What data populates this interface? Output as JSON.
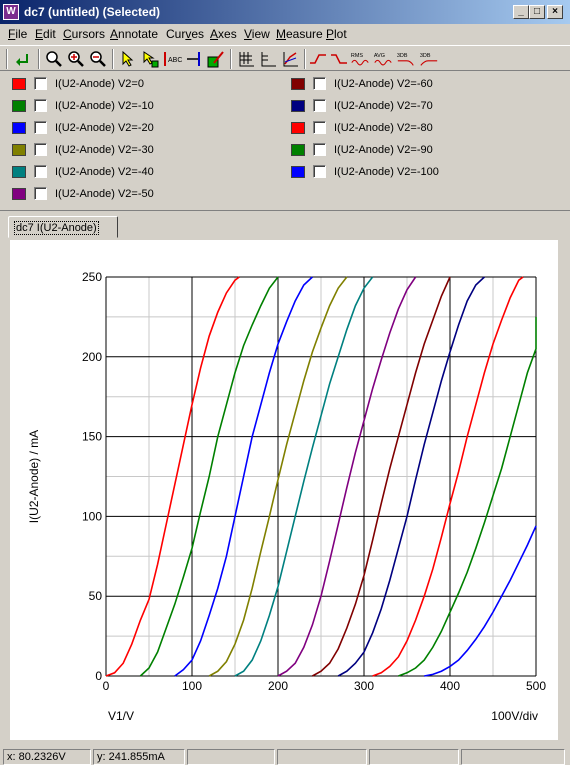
{
  "window": {
    "title": "dc7 (untitled) (Selected)",
    "icon": "app-logo-icon"
  },
  "menu": [
    {
      "pre": "",
      "u": "F",
      "post": "ile"
    },
    {
      "pre": "",
      "u": "E",
      "post": "dit"
    },
    {
      "pre": "",
      "u": "C",
      "post": "ursors"
    },
    {
      "pre": "",
      "u": "A",
      "post": "nnotate"
    },
    {
      "pre": "Cur",
      "u": "v",
      "post": "es"
    },
    {
      "pre": "",
      "u": "A",
      "post": "xes"
    },
    {
      "pre": "",
      "u": "V",
      "post": "iew"
    },
    {
      "pre": "",
      "u": "M",
      "post": "easure"
    },
    {
      "pre": "",
      "u": "P",
      "post": "lot"
    }
  ],
  "toolbar": {
    "text_buttons": [
      "RMS",
      "AVG",
      "3DB",
      "3DB"
    ]
  },
  "legend": [
    {
      "label": "I(U2-Anode) V2=0",
      "color": "#ff0000"
    },
    {
      "label": "I(U2-Anode) V2=-10",
      "color": "#008000"
    },
    {
      "label": "I(U2-Anode) V2=-20",
      "color": "#0000ff"
    },
    {
      "label": "I(U2-Anode) V2=-30",
      "color": "#808000"
    },
    {
      "label": "I(U2-Anode) V2=-40",
      "color": "#008080"
    },
    {
      "label": "I(U2-Anode) V2=-50",
      "color": "#800080"
    },
    {
      "label": "I(U2-Anode) V2=-60",
      "color": "#800000"
    },
    {
      "label": "I(U2-Anode) V2=-70",
      "color": "#000080"
    },
    {
      "label": "I(U2-Anode) V2=-80",
      "color": "#ff0000"
    },
    {
      "label": "I(U2-Anode) V2=-90",
      "color": "#008000"
    },
    {
      "label": "I(U2-Anode) V2=-100",
      "color": "#0000ff"
    }
  ],
  "tab": {
    "label": "dc7 I(U2-Anode)"
  },
  "status": {
    "x": "x: 80.2326V",
    "y": "y: 241.855mA"
  },
  "chart_data": {
    "type": "line",
    "xlabel": "V1/V",
    "ylabel": "I(U2-Anode) / mA",
    "x_scale_label": "100V/div",
    "xlim": [
      0,
      500
    ],
    "ylim": [
      0,
      250
    ],
    "x_ticks": [
      0,
      100,
      200,
      300,
      400,
      500
    ],
    "y_ticks": [
      0,
      50,
      100,
      150,
      200,
      250
    ],
    "grid": true,
    "series": [
      {
        "name": "I(U2-Anode) V2=0",
        "color": "#ff0000",
        "points": [
          [
            0,
            0
          ],
          [
            10,
            2
          ],
          [
            20,
            8
          ],
          [
            30,
            20
          ],
          [
            40,
            35
          ],
          [
            50,
            48
          ],
          [
            60,
            70
          ],
          [
            70,
            95
          ],
          [
            80,
            120
          ],
          [
            90,
            145
          ],
          [
            100,
            170
          ],
          [
            110,
            193
          ],
          [
            120,
            213
          ],
          [
            130,
            228
          ],
          [
            140,
            240
          ],
          [
            150,
            248
          ],
          [
            155,
            250
          ]
        ]
      },
      {
        "name": "I(U2-Anode) V2=-10",
        "color": "#008000",
        "points": [
          [
            40,
            0
          ],
          [
            50,
            5
          ],
          [
            60,
            15
          ],
          [
            70,
            30
          ],
          [
            80,
            45
          ],
          [
            90,
            62
          ],
          [
            100,
            80
          ],
          [
            110,
            103
          ],
          [
            120,
            125
          ],
          [
            130,
            150
          ],
          [
            140,
            170
          ],
          [
            150,
            190
          ],
          [
            160,
            207
          ],
          [
            170,
            220
          ],
          [
            180,
            232
          ],
          [
            190,
            243
          ],
          [
            200,
            250
          ]
        ]
      },
      {
        "name": "I(U2-Anode) V2=-20",
        "color": "#0000ff",
        "points": [
          [
            80,
            0
          ],
          [
            90,
            4
          ],
          [
            100,
            10
          ],
          [
            110,
            22
          ],
          [
            120,
            38
          ],
          [
            130,
            55
          ],
          [
            140,
            75
          ],
          [
            150,
            100
          ],
          [
            160,
            125
          ],
          [
            170,
            150
          ],
          [
            180,
            170
          ],
          [
            190,
            190
          ],
          [
            200,
            208
          ],
          [
            210,
            222
          ],
          [
            220,
            235
          ],
          [
            230,
            245
          ],
          [
            240,
            250
          ]
        ]
      },
      {
        "name": "I(U2-Anode) V2=-30",
        "color": "#808000",
        "points": [
          [
            120,
            0
          ],
          [
            130,
            3
          ],
          [
            140,
            9
          ],
          [
            150,
            20
          ],
          [
            160,
            35
          ],
          [
            170,
            55
          ],
          [
            180,
            78
          ],
          [
            190,
            100
          ],
          [
            200,
            123
          ],
          [
            210,
            145
          ],
          [
            220,
            165
          ],
          [
            230,
            185
          ],
          [
            240,
            203
          ],
          [
            250,
            218
          ],
          [
            260,
            232
          ],
          [
            270,
            243
          ],
          [
            280,
            250
          ]
        ]
      },
      {
        "name": "I(U2-Anode) V2=-40",
        "color": "#008080",
        "points": [
          [
            150,
            0
          ],
          [
            160,
            3
          ],
          [
            170,
            10
          ],
          [
            180,
            22
          ],
          [
            190,
            38
          ],
          [
            200,
            56
          ],
          [
            210,
            78
          ],
          [
            220,
            100
          ],
          [
            230,
            122
          ],
          [
            240,
            143
          ],
          [
            250,
            163
          ],
          [
            260,
            183
          ],
          [
            270,
            200
          ],
          [
            280,
            217
          ],
          [
            290,
            232
          ],
          [
            300,
            243
          ],
          [
            310,
            250
          ]
        ]
      },
      {
        "name": "I(U2-Anode) V2=-50",
        "color": "#800080",
        "points": [
          [
            200,
            0
          ],
          [
            210,
            3
          ],
          [
            220,
            8
          ],
          [
            230,
            18
          ],
          [
            240,
            32
          ],
          [
            250,
            50
          ],
          [
            260,
            72
          ],
          [
            270,
            95
          ],
          [
            280,
            118
          ],
          [
            290,
            140
          ],
          [
            300,
            160
          ],
          [
            310,
            180
          ],
          [
            320,
            198
          ],
          [
            330,
            215
          ],
          [
            340,
            230
          ],
          [
            350,
            242
          ],
          [
            360,
            250
          ]
        ]
      },
      {
        "name": "I(U2-Anode) V2=-60",
        "color": "#800000",
        "points": [
          [
            240,
            0
          ],
          [
            250,
            3
          ],
          [
            260,
            8
          ],
          [
            270,
            17
          ],
          [
            280,
            30
          ],
          [
            290,
            45
          ],
          [
            300,
            63
          ],
          [
            310,
            85
          ],
          [
            320,
            108
          ],
          [
            330,
            130
          ],
          [
            340,
            150
          ],
          [
            350,
            170
          ],
          [
            360,
            190
          ],
          [
            370,
            208
          ],
          [
            380,
            223
          ],
          [
            390,
            238
          ],
          [
            400,
            250
          ]
        ]
      },
      {
        "name": "I(U2-Anode) V2=-70",
        "color": "#000080",
        "points": [
          [
            270,
            0
          ],
          [
            280,
            3
          ],
          [
            290,
            8
          ],
          [
            300,
            15
          ],
          [
            310,
            27
          ],
          [
            320,
            42
          ],
          [
            330,
            60
          ],
          [
            340,
            80
          ],
          [
            350,
            100
          ],
          [
            360,
            123
          ],
          [
            370,
            145
          ],
          [
            380,
            165
          ],
          [
            390,
            185
          ],
          [
            400,
            203
          ],
          [
            410,
            220
          ],
          [
            420,
            235
          ],
          [
            430,
            245
          ],
          [
            440,
            250
          ]
        ]
      },
      {
        "name": "I(U2-Anode) V2=-80",
        "color": "#ff0000",
        "points": [
          [
            310,
            0
          ],
          [
            320,
            2
          ],
          [
            330,
            6
          ],
          [
            340,
            12
          ],
          [
            350,
            22
          ],
          [
            360,
            35
          ],
          [
            370,
            50
          ],
          [
            380,
            67
          ],
          [
            390,
            87
          ],
          [
            400,
            108
          ],
          [
            410,
            128
          ],
          [
            420,
            150
          ],
          [
            430,
            170
          ],
          [
            440,
            190
          ],
          [
            450,
            208
          ],
          [
            460,
            223
          ],
          [
            470,
            237
          ],
          [
            480,
            248
          ],
          [
            485,
            250
          ]
        ]
      },
      {
        "name": "I(U2-Anode) V2=-90",
        "color": "#008000",
        "points": [
          [
            340,
            0
          ],
          [
            350,
            2
          ],
          [
            360,
            5
          ],
          [
            370,
            10
          ],
          [
            380,
            18
          ],
          [
            390,
            28
          ],
          [
            400,
            40
          ],
          [
            410,
            52
          ],
          [
            420,
            65
          ],
          [
            430,
            80
          ],
          [
            440,
            96
          ],
          [
            450,
            113
          ],
          [
            460,
            130
          ],
          [
            470,
            150
          ],
          [
            480,
            170
          ],
          [
            490,
            190
          ],
          [
            500,
            205
          ],
          [
            500,
            225
          ]
        ]
      },
      {
        "name": "I(U2-Anode) V2=-100",
        "color": "#0000ff",
        "points": [
          [
            370,
            0
          ],
          [
            380,
            1
          ],
          [
            390,
            3
          ],
          [
            400,
            6
          ],
          [
            410,
            10
          ],
          [
            420,
            16
          ],
          [
            430,
            23
          ],
          [
            440,
            31
          ],
          [
            450,
            40
          ],
          [
            460,
            50
          ],
          [
            470,
            60
          ],
          [
            480,
            71
          ],
          [
            490,
            82
          ],
          [
            500,
            94
          ]
        ]
      }
    ]
  }
}
